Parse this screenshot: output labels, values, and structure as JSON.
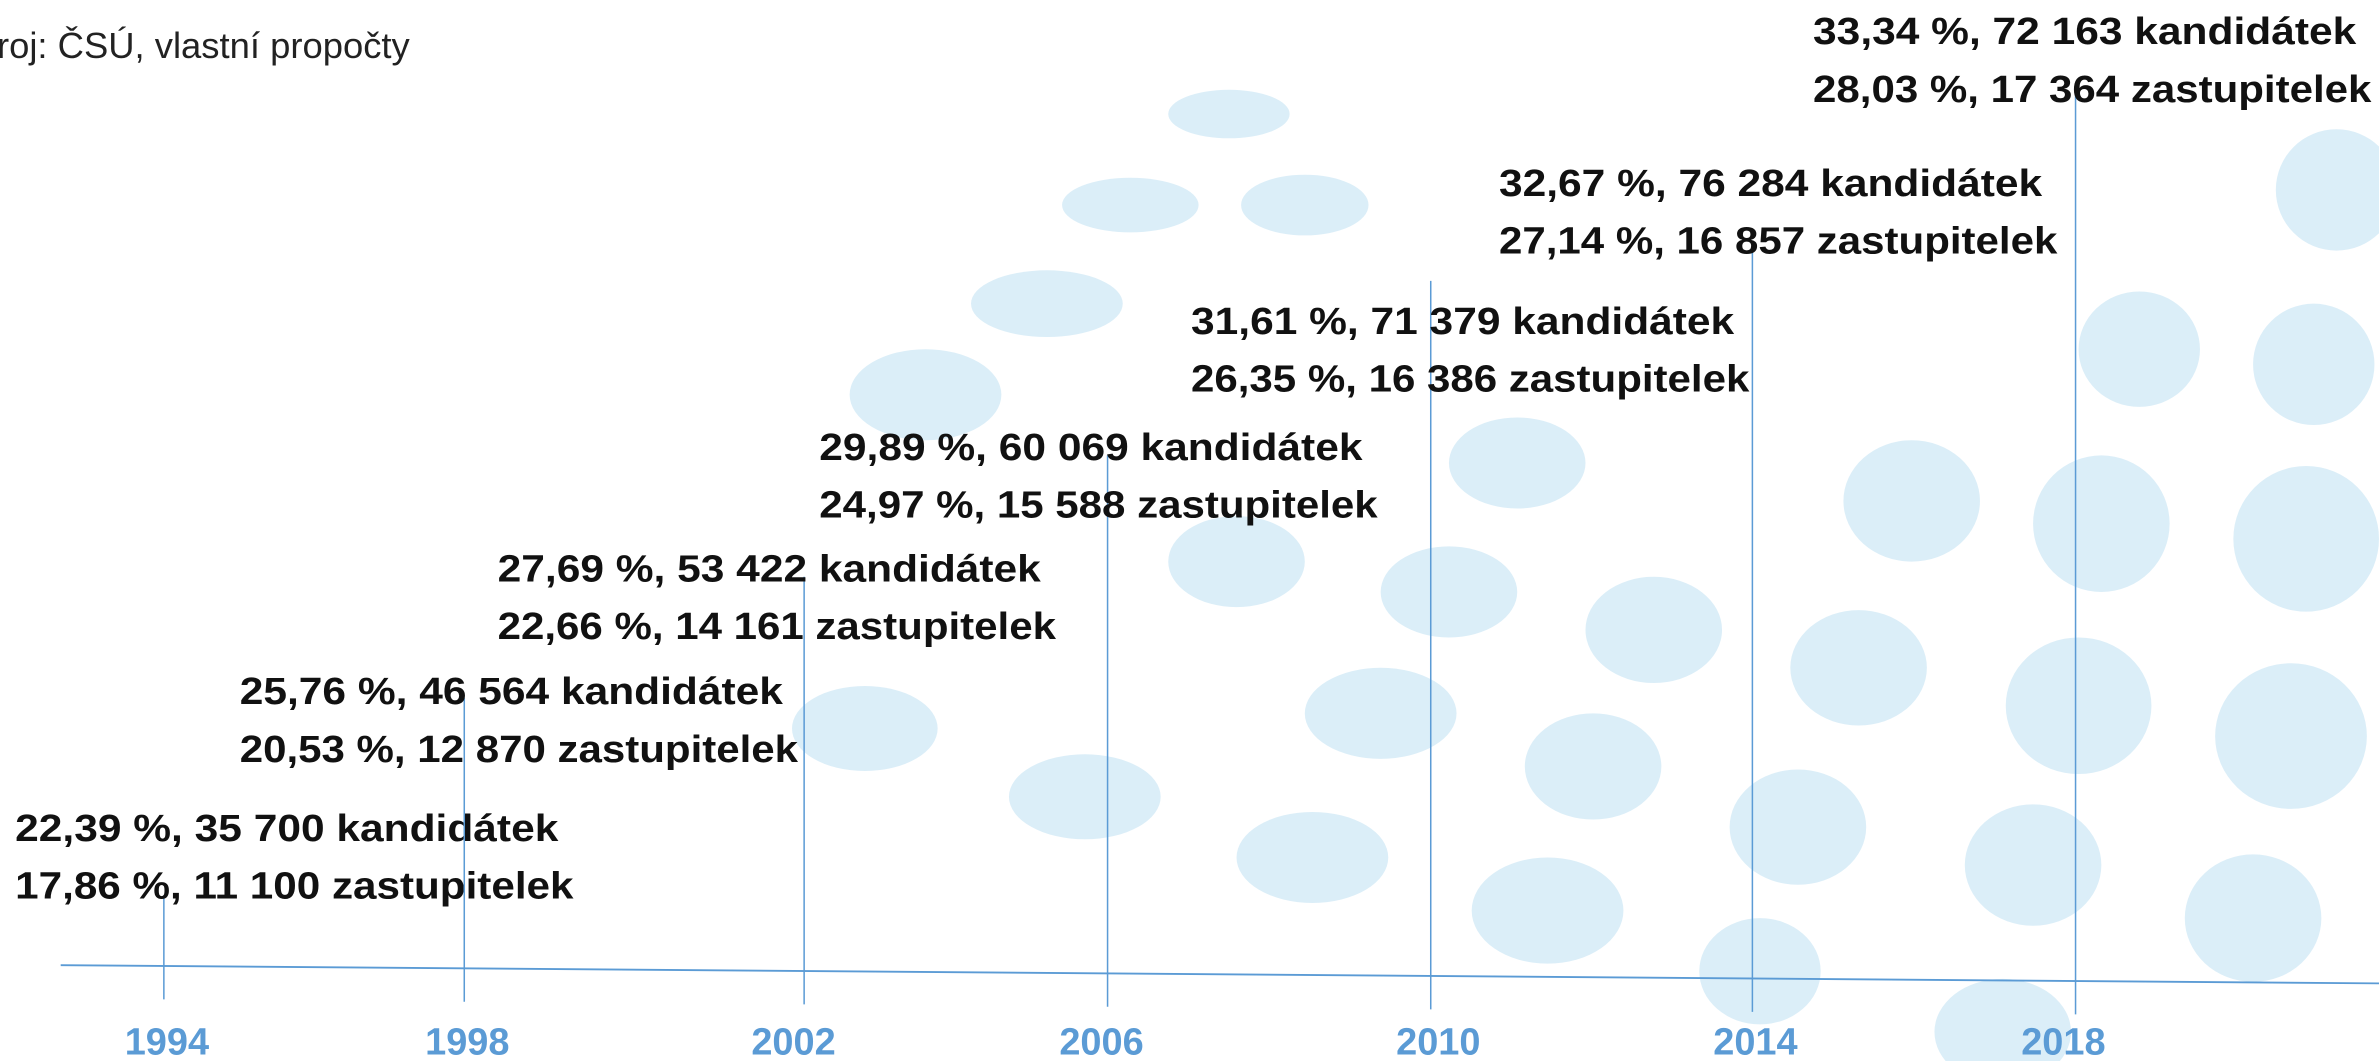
{
  "source": "roj: ČSÚ, vlastní propočty",
  "entries": [
    {
      "year": "1994",
      "line1": "22,39 %, 35 700 kandidátek",
      "line2": "17,86 %, 11 100 zastupitelek"
    },
    {
      "year": "1998",
      "line1": "25,76 %, 46 564 kandidátek",
      "line2": "20,53 %, 12 870 zastupitelek"
    },
    {
      "year": "2002",
      "line1": "27,69 %, 53 422 kandidátek",
      "line2": "22,66 %, 14 161 zastupitelek"
    },
    {
      "year": "2006",
      "line1": "29,89 %, 60 069 kandidátek",
      "line2": "24,97 %, 15 588 zastupitelek"
    },
    {
      "year": "2010",
      "line1": "31,61 %, 71 379 kandidátek",
      "line2": "26,35 %, 16 386 zastupitelek"
    },
    {
      "year": "2014",
      "line1": "32,67 %, 76 284 kandidátek",
      "line2": "27,14 %, 16 857 zastupitelek"
    },
    {
      "year": "2018",
      "line1": "33,34 %, 72 163 kandidátek",
      "line2": "28,03 %, 17 364 zastupitelek"
    }
  ]
}
